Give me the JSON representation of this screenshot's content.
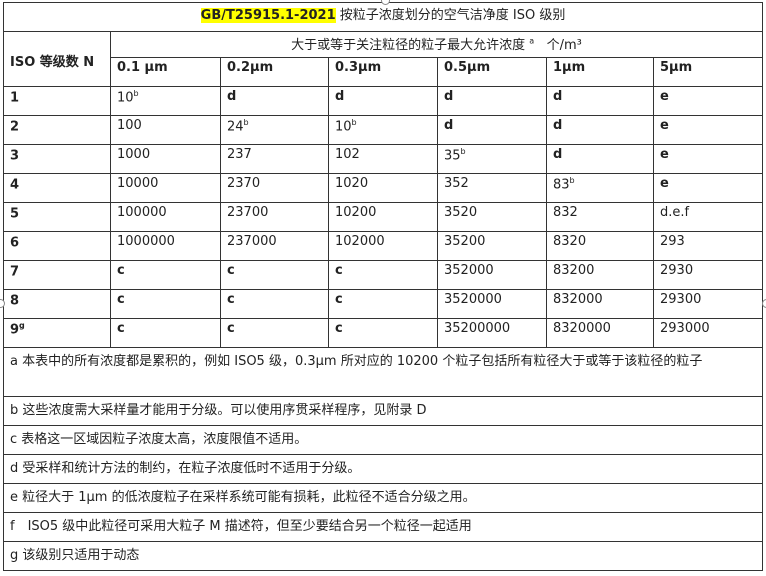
{
  "title": {
    "code": "GB/T25915.1-2021",
    "text": " 按粒子浓度划分的空气洁净度 ISO 级别",
    "highlight_color": "#ffff00"
  },
  "header": {
    "iso_class": "ISO 等级数 N",
    "concentration": "大于或等于关注粒径的粒子最大允许浓度",
    "conc_sup": "a",
    "unit": "个/m³",
    "sizes": [
      "0.1 μm",
      "0.2μm",
      "0.3μm",
      "0.5μm",
      "1μm",
      "5μm"
    ]
  },
  "rows": [
    {
      "n": "1",
      "nsup": "",
      "cells": [
        {
          "v": "10",
          "s": "b"
        },
        {
          "v": "d"
        },
        {
          "v": "d"
        },
        {
          "v": "d"
        },
        {
          "v": "d"
        },
        {
          "v": "e"
        }
      ]
    },
    {
      "n": "2",
      "nsup": "",
      "cells": [
        {
          "v": "100"
        },
        {
          "v": "24",
          "s": "b"
        },
        {
          "v": "10",
          "s": "b"
        },
        {
          "v": "d"
        },
        {
          "v": "d"
        },
        {
          "v": "e"
        }
      ]
    },
    {
      "n": "3",
      "nsup": "",
      "cells": [
        {
          "v": "1000"
        },
        {
          "v": "237"
        },
        {
          "v": "102"
        },
        {
          "v": "35",
          "s": "b"
        },
        {
          "v": "d"
        },
        {
          "v": "e"
        }
      ]
    },
    {
      "n": "4",
      "nsup": "",
      "cells": [
        {
          "v": "10000"
        },
        {
          "v": "2370"
        },
        {
          "v": "1020"
        },
        {
          "v": "352"
        },
        {
          "v": "83",
          "s": "b"
        },
        {
          "v": "e"
        }
      ]
    },
    {
      "n": "5",
      "nsup": "",
      "cells": [
        {
          "v": "100000"
        },
        {
          "v": "23700"
        },
        {
          "v": "10200"
        },
        {
          "v": "3520"
        },
        {
          "v": "832"
        },
        {
          "v": "d.e.f"
        }
      ]
    },
    {
      "n": "6",
      "nsup": "",
      "cells": [
        {
          "v": "1000000"
        },
        {
          "v": "237000"
        },
        {
          "v": "102000"
        },
        {
          "v": "35200"
        },
        {
          "v": "8320"
        },
        {
          "v": "293"
        }
      ]
    },
    {
      "n": "7",
      "nsup": "",
      "cells": [
        {
          "v": "c"
        },
        {
          "v": "c"
        },
        {
          "v": "c"
        },
        {
          "v": "352000"
        },
        {
          "v": "83200"
        },
        {
          "v": "2930"
        }
      ]
    },
    {
      "n": "8",
      "nsup": "",
      "cells": [
        {
          "v": "c"
        },
        {
          "v": "c"
        },
        {
          "v": "c"
        },
        {
          "v": "3520000"
        },
        {
          "v": "832000"
        },
        {
          "v": "29300"
        }
      ]
    },
    {
      "n": "9",
      "nsup": "g",
      "cells": [
        {
          "v": "c"
        },
        {
          "v": "c"
        },
        {
          "v": "c"
        },
        {
          "v": "35200000"
        },
        {
          "v": "8320000"
        },
        {
          "v": "293000"
        }
      ]
    }
  ],
  "notes": [
    "a 本表中的所有浓度都是累积的，例如 ISO5 级，0.3μm 所对应的 10200 个粒子包括所有粒径大于或等于该粒径的粒子",
    "b 这些浓度需大采样量才能用于分级。可以使用序贯采样程序，见附录 D",
    "c 表格这一区域因粒子浓度太高，浓度限值不适用。",
    "d 受采样和统计方法的制约，在粒子浓度低时不适用于分级。",
    "e 粒径大于 1μm 的低浓度粒子在采样系统可能有损耗，此粒径不适合分级之用。",
    "f　ISO5 级中此粒径可采用大粒子 M 描述符，但至少要结合另一个粒径一起适用",
    "g 该级别只适用于动态"
  ]
}
